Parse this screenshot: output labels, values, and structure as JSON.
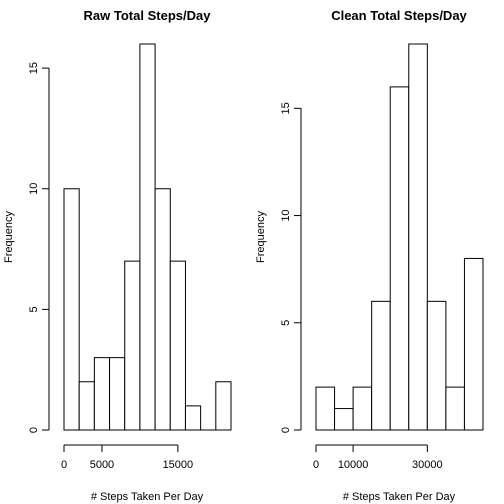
{
  "chart_data": [
    {
      "type": "bar",
      "title": "Raw Total Steps/Day",
      "xlabel": "# Steps Taken Per Day",
      "ylabel": "Frequency",
      "bin_edges": [
        0,
        2000,
        4000,
        6000,
        8000,
        10000,
        12000,
        14000,
        16000,
        18000,
        20000,
        22000
      ],
      "values": [
        10,
        2,
        3,
        3,
        7,
        16,
        10,
        7,
        1,
        0,
        2
      ],
      "xlim": [
        0,
        22000
      ],
      "ylim": [
        0,
        16
      ],
      "xticks": [
        0,
        5000,
        15000
      ],
      "yticks": [
        0,
        5,
        10,
        15
      ],
      "grid": false,
      "legend": "none"
    },
    {
      "type": "bar",
      "title": "Clean Total Steps/Day",
      "xlabel": "# Steps Taken Per Day",
      "ylabel": "Frequency",
      "bin_edges": [
        0,
        5000,
        10000,
        15000,
        20000,
        25000,
        30000,
        35000,
        40000,
        45000
      ],
      "values": [
        2,
        1,
        2,
        6,
        16,
        18,
        6,
        2,
        8
      ],
      "xlim": [
        0,
        45000
      ],
      "ylim": [
        0,
        18
      ],
      "xticks": [
        0,
        10000,
        30000
      ],
      "yticks": [
        0,
        5,
        10,
        15
      ],
      "grid": false,
      "legend": "none"
    }
  ]
}
